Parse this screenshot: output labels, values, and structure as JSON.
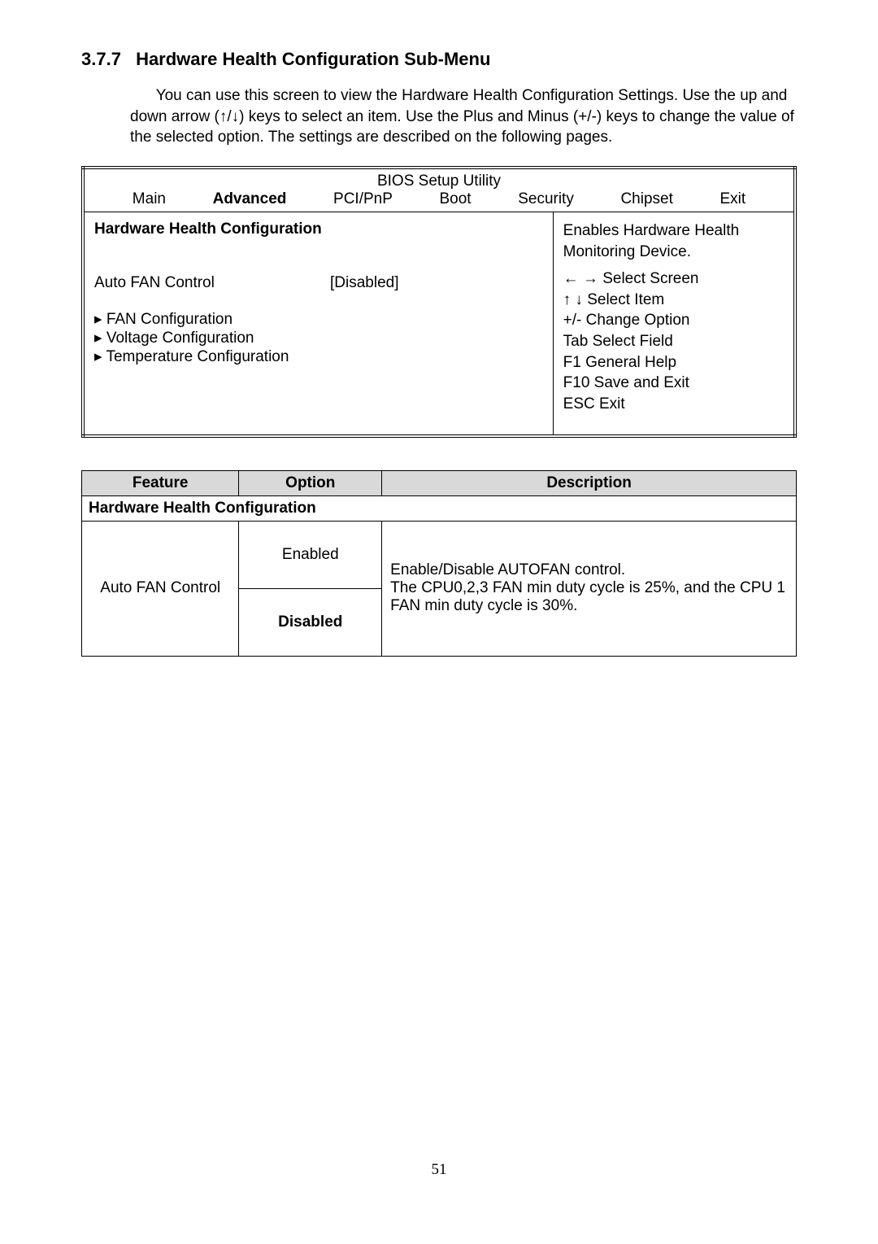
{
  "heading": {
    "number": "3.7.7",
    "title": "Hardware Health Configuration Sub-Menu"
  },
  "intro": "You can use this screen to view the Hardware Health Configuration Settings. Use the up and down arrow (↑/↓) keys to select an item. Use the Plus and Minus (+/-) keys to change the value of the selected option. The settings are described on the following pages.",
  "bios": {
    "utility_title": "BIOS Setup Utility",
    "tabs": [
      "Main",
      "Advanced",
      "PCI/PnP",
      "Boot",
      "Security",
      "Chipset",
      "Exit"
    ],
    "active_tab_index": 1,
    "panel_title": "Hardware Health Configuration",
    "setting": {
      "label": "Auto FAN Control",
      "value": "[Disabled]"
    },
    "submenus": [
      "▸ FAN Configuration",
      "▸ Voltage Configuration",
      "▸ Temperature Configuration"
    ],
    "help_top": "Enables Hardware Health Monitoring Device.",
    "help_keys": [
      "← → Select Screen",
      "↑  ↓  Select Item",
      "+/-     Change Option",
      "Tab   Select Field",
      "F1      General Help",
      "F10   Save and Exit",
      "ESC  Exit"
    ]
  },
  "feature_table": {
    "headers": {
      "feature": "Feature",
      "option": "Option",
      "description": "Description"
    },
    "subheader": "Hardware Health Configuration",
    "row": {
      "feature": "Auto FAN Control",
      "option_enabled": "Enabled",
      "option_disabled": "Disabled",
      "description": "Enable/Disable AUTOFAN control.\nThe CPU0,2,3 FAN min duty cycle is 25%, and the CPU 1 FAN min duty cycle is 30%."
    }
  },
  "page_number": "51"
}
